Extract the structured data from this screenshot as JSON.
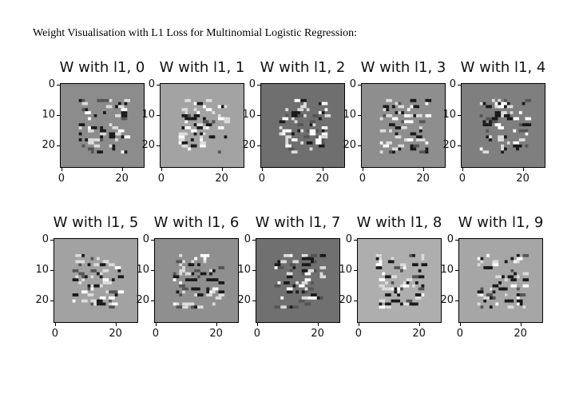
{
  "heading": "Weight Visualisation with L1 Loss for Multinomial Logistic Regression:",
  "chart_data": {
    "type": "heatmap",
    "colormap": "gray",
    "image_size": [
      28,
      28
    ],
    "y_ticks": [
      "0",
      "10",
      "20"
    ],
    "x_ticks": [
      "0",
      "20"
    ],
    "panels": [
      {
        "title": "W with l1, 0",
        "background": "#8c8c8c"
      },
      {
        "title": "W with l1, 1",
        "background": "#a3a3a3"
      },
      {
        "title": "W with l1, 2",
        "background": "#6f6f6f"
      },
      {
        "title": "W with l1, 3",
        "background": "#8e8e8e"
      },
      {
        "title": "W with l1, 4",
        "background": "#7f7f7f"
      },
      {
        "title": "W with l1, 5",
        "background": "#a2a2a2"
      },
      {
        "title": "W with l1, 6",
        "background": "#8f8f8f"
      },
      {
        "title": "W with l1, 7",
        "background": "#707070"
      },
      {
        "title": "W with l1, 8",
        "background": "#aeaeae"
      },
      {
        "title": "W with l1, 9",
        "background": "#a6a6a6"
      }
    ]
  }
}
